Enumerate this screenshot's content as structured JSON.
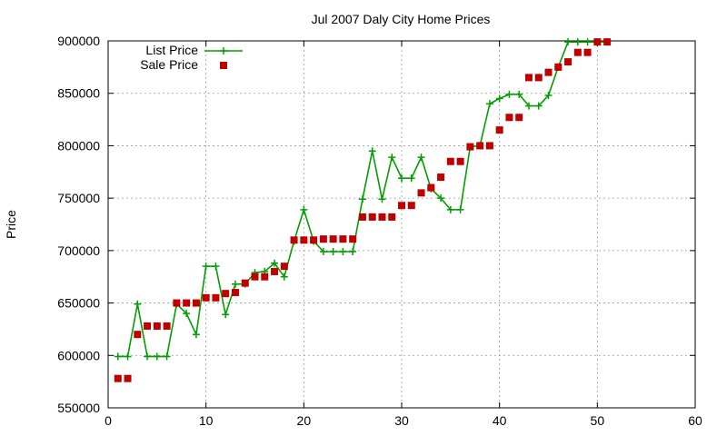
{
  "chart_data": {
    "type": "line",
    "title": "Jul 2007 Daly City Home Prices",
    "xlabel": "",
    "ylabel": "Price",
    "xlim": [
      0,
      60
    ],
    "ylim": [
      550000,
      900000
    ],
    "x_ticks": [
      0,
      10,
      20,
      30,
      40,
      50,
      60
    ],
    "y_ticks": [
      550000,
      600000,
      650000,
      700000,
      750000,
      800000,
      850000,
      900000
    ],
    "grid": true,
    "legend_position": "top-left",
    "series": [
      {
        "name": "List Price",
        "style": "line-plus",
        "color": "#00a000",
        "points": [
          [
            1,
            599000
          ],
          [
            2,
            599000
          ],
          [
            3,
            649000
          ],
          [
            4,
            599000
          ],
          [
            5,
            599000
          ],
          [
            6,
            599000
          ],
          [
            7,
            649000
          ],
          [
            8,
            640000
          ],
          [
            9,
            620000
          ],
          [
            10,
            685000
          ],
          [
            11,
            685000
          ],
          [
            12,
            639000
          ],
          [
            13,
            668000
          ],
          [
            14,
            668000
          ],
          [
            15,
            679000
          ],
          [
            16,
            680000
          ],
          [
            17,
            688000
          ],
          [
            18,
            675000
          ],
          [
            19,
            709000
          ],
          [
            20,
            739000
          ],
          [
            21,
            709000
          ],
          [
            22,
            699000
          ],
          [
            23,
            699000
          ],
          [
            24,
            699000
          ],
          [
            25,
            699000
          ],
          [
            26,
            749000
          ],
          [
            27,
            795000
          ],
          [
            28,
            749000
          ],
          [
            29,
            789000
          ],
          [
            30,
            769000
          ],
          [
            31,
            769000
          ],
          [
            32,
            789000
          ],
          [
            33,
            759000
          ],
          [
            34,
            750000
          ],
          [
            35,
            739000
          ],
          [
            36,
            739000
          ],
          [
            37,
            799000
          ],
          [
            38,
            800000
          ],
          [
            39,
            840000
          ],
          [
            40,
            845000
          ],
          [
            41,
            849000
          ],
          [
            42,
            849000
          ],
          [
            43,
            838000
          ],
          [
            44,
            838000
          ],
          [
            45,
            848000
          ],
          [
            46,
            875000
          ],
          [
            47,
            899000
          ],
          [
            48,
            899000
          ],
          [
            49,
            899000
          ],
          [
            50,
            899000
          ],
          [
            51,
            899000
          ]
        ]
      },
      {
        "name": "Sale Price",
        "style": "squares",
        "color": "#c00000",
        "points": [
          [
            1,
            578000
          ],
          [
            2,
            578000
          ],
          [
            3,
            620000
          ],
          [
            4,
            628000
          ],
          [
            5,
            628000
          ],
          [
            6,
            628000
          ],
          [
            7,
            650000
          ],
          [
            8,
            650000
          ],
          [
            9,
            650000
          ],
          [
            10,
            655000
          ],
          [
            11,
            655000
          ],
          [
            12,
            659000
          ],
          [
            13,
            660000
          ],
          [
            14,
            669000
          ],
          [
            15,
            675000
          ],
          [
            16,
            675000
          ],
          [
            17,
            680000
          ],
          [
            18,
            685000
          ],
          [
            19,
            710000
          ],
          [
            20,
            710000
          ],
          [
            21,
            710000
          ],
          [
            22,
            711000
          ],
          [
            23,
            711000
          ],
          [
            24,
            711000
          ],
          [
            25,
            711000
          ],
          [
            26,
            732000
          ],
          [
            27,
            732000
          ],
          [
            28,
            732000
          ],
          [
            29,
            732000
          ],
          [
            30,
            743000
          ],
          [
            31,
            743000
          ],
          [
            32,
            755000
          ],
          [
            33,
            760000
          ],
          [
            34,
            770000
          ],
          [
            35,
            785000
          ],
          [
            36,
            785000
          ],
          [
            37,
            799000
          ],
          [
            38,
            800000
          ],
          [
            39,
            800000
          ],
          [
            40,
            815000
          ],
          [
            41,
            827000
          ],
          [
            42,
            827000
          ],
          [
            43,
            865000
          ],
          [
            44,
            865000
          ],
          [
            45,
            870000
          ],
          [
            46,
            875000
          ],
          [
            47,
            880000
          ],
          [
            48,
            889000
          ],
          [
            49,
            889000
          ],
          [
            50,
            899000
          ],
          [
            51,
            899000
          ]
        ]
      }
    ]
  }
}
